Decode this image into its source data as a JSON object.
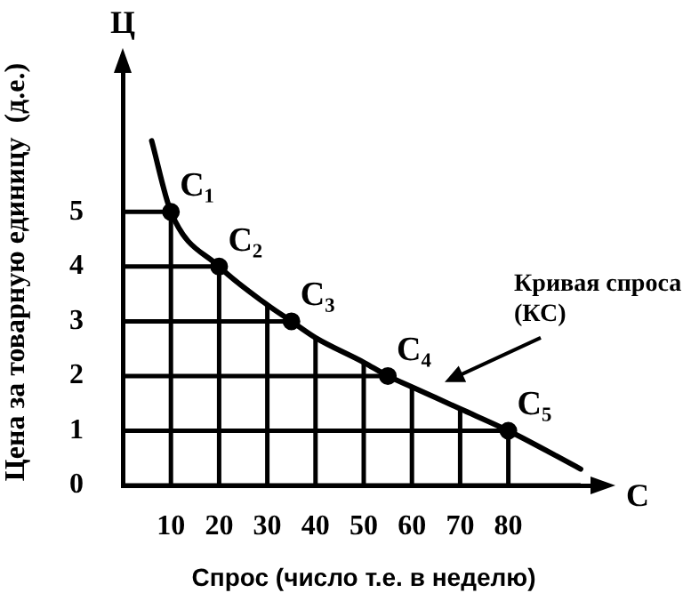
{
  "chart_data": {
    "type": "line",
    "xlabel": "Спрос (число т.е. в неделю)",
    "ylabel": "Цена за товарную единицу  (д.е.)",
    "annotations": [
      "Ц",
      "С",
      {
        "text": "C₁",
        "x": 10,
        "y": 5
      },
      {
        "text": "C₂",
        "x": 20,
        "y": 4
      },
      {
        "text": "C₃",
        "x": 35,
        "y": 3
      },
      {
        "text": "C₄",
        "x": 55,
        "y": 2
      },
      {
        "text": "C₅",
        "x": 80,
        "y": 1
      }
    ],
    "series": [
      {
        "type": "line",
        "name": "Кривая спроса (КС)",
        "color": "#000000",
        "marker": "none",
        "x": [
          6,
          10,
          20,
          30,
          35,
          40,
          50,
          55,
          60,
          70,
          80,
          95
        ],
        "values": [
          6.3,
          5,
          4,
          3.3,
          3,
          2.7,
          2.25,
          2,
          1.8,
          1.4,
          1,
          0.3
        ]
      },
      {
        "type": "scatter",
        "color": "#000000",
        "marker": "circle",
        "x": [
          10,
          20,
          35,
          55,
          80
        ],
        "values": [
          5,
          4,
          3,
          2,
          1
        ]
      }
    ],
    "xlim": [
      0,
      100
    ],
    "ylim": [
      0,
      7.8
    ],
    "xticks": [
      10,
      20,
      30,
      40,
      50,
      60,
      70,
      80
    ],
    "yticks": [
      0,
      1,
      2,
      3,
      4,
      5
    ],
    "grid": true,
    "legend": false
  }
}
